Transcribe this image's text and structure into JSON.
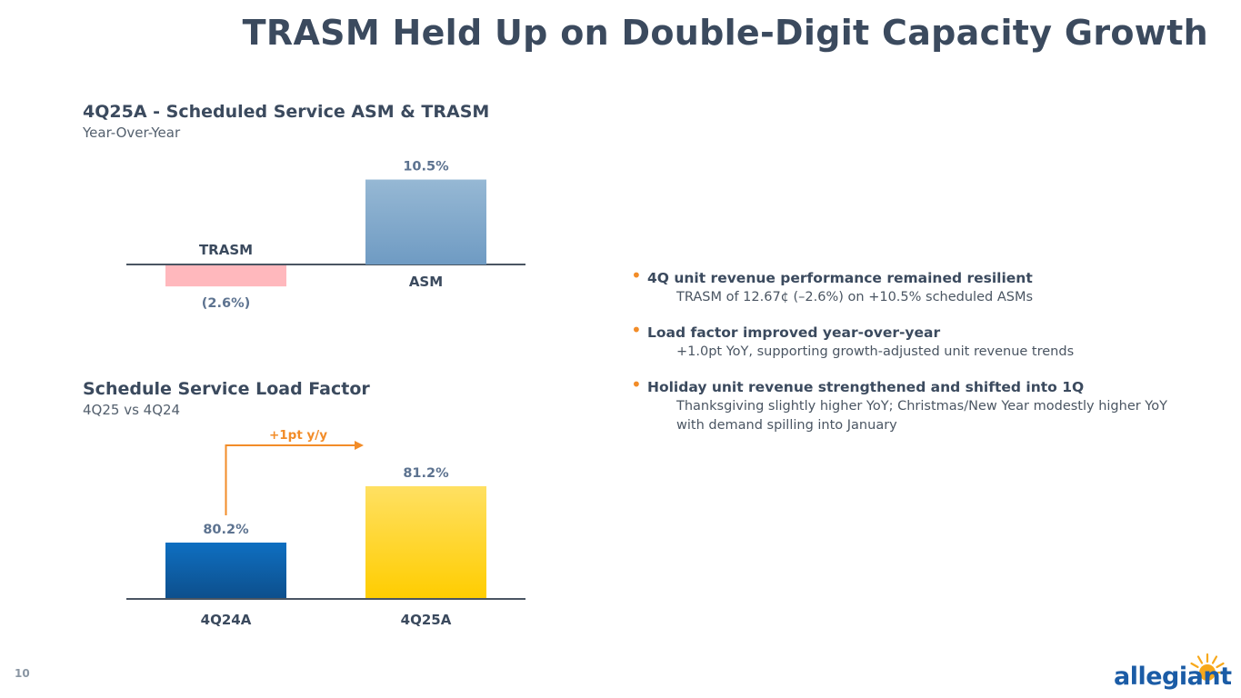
{
  "slide": {
    "title": "TRASM Held Up on Double-Digit Capacity Growth",
    "page_number": "10",
    "logo_text": "allegiant"
  },
  "chart1": {
    "title": "4Q25A - Scheduled Service ASM & TRASM",
    "subtitle": "Year-Over-Year"
  },
  "chart2": {
    "title": "Schedule Service Load Factor",
    "subtitle": "4Q25 vs 4Q24",
    "annotation": "+1pt y/y"
  },
  "bullets": [
    {
      "head": "4Q unit revenue performance remained resilient",
      "body": "TRASM of 12.67¢ (–2.6%) on +10.5% scheduled ASMs"
    },
    {
      "head": "Load factor improved year-over-year",
      "body": "+1.0pt YoY, supporting growth-adjusted unit revenue trends"
    },
    {
      "head": "Holiday unit revenue strengthened and shifted into 1Q",
      "body": "Thanksgiving slightly higher YoY; Christmas/New Year modestly higher YoY with demand spilling into January"
    }
  ],
  "colors": {
    "trasm_bar": "#ffb8bd",
    "asm_bar": "#8fb3d0",
    "lf_4q24": "#1466b0",
    "lf_4q25": "#ffd21f",
    "annotation": "#f28c28",
    "value_label": "#5d7390",
    "axis": "#4a5562"
  },
  "chart_data": [
    {
      "type": "bar",
      "title": "4Q25A - Scheduled Service ASM & TRASM",
      "subtitle": "Year-Over-Year",
      "categories": [
        "TRASM",
        "ASM"
      ],
      "values": [
        -2.6,
        10.5
      ],
      "data_labels": [
        "(2.6%)",
        "10.5%"
      ],
      "unit": "%",
      "ylim": [
        -2.6,
        10.5
      ]
    },
    {
      "type": "bar",
      "title": "Schedule Service Load Factor",
      "subtitle": "4Q25 vs 4Q24",
      "categories": [
        "4Q24A",
        "4Q25A"
      ],
      "values": [
        80.2,
        81.2
      ],
      "data_labels": [
        "80.2%",
        "81.2%"
      ],
      "unit": "%",
      "annotation": "+1pt y/y"
    }
  ]
}
